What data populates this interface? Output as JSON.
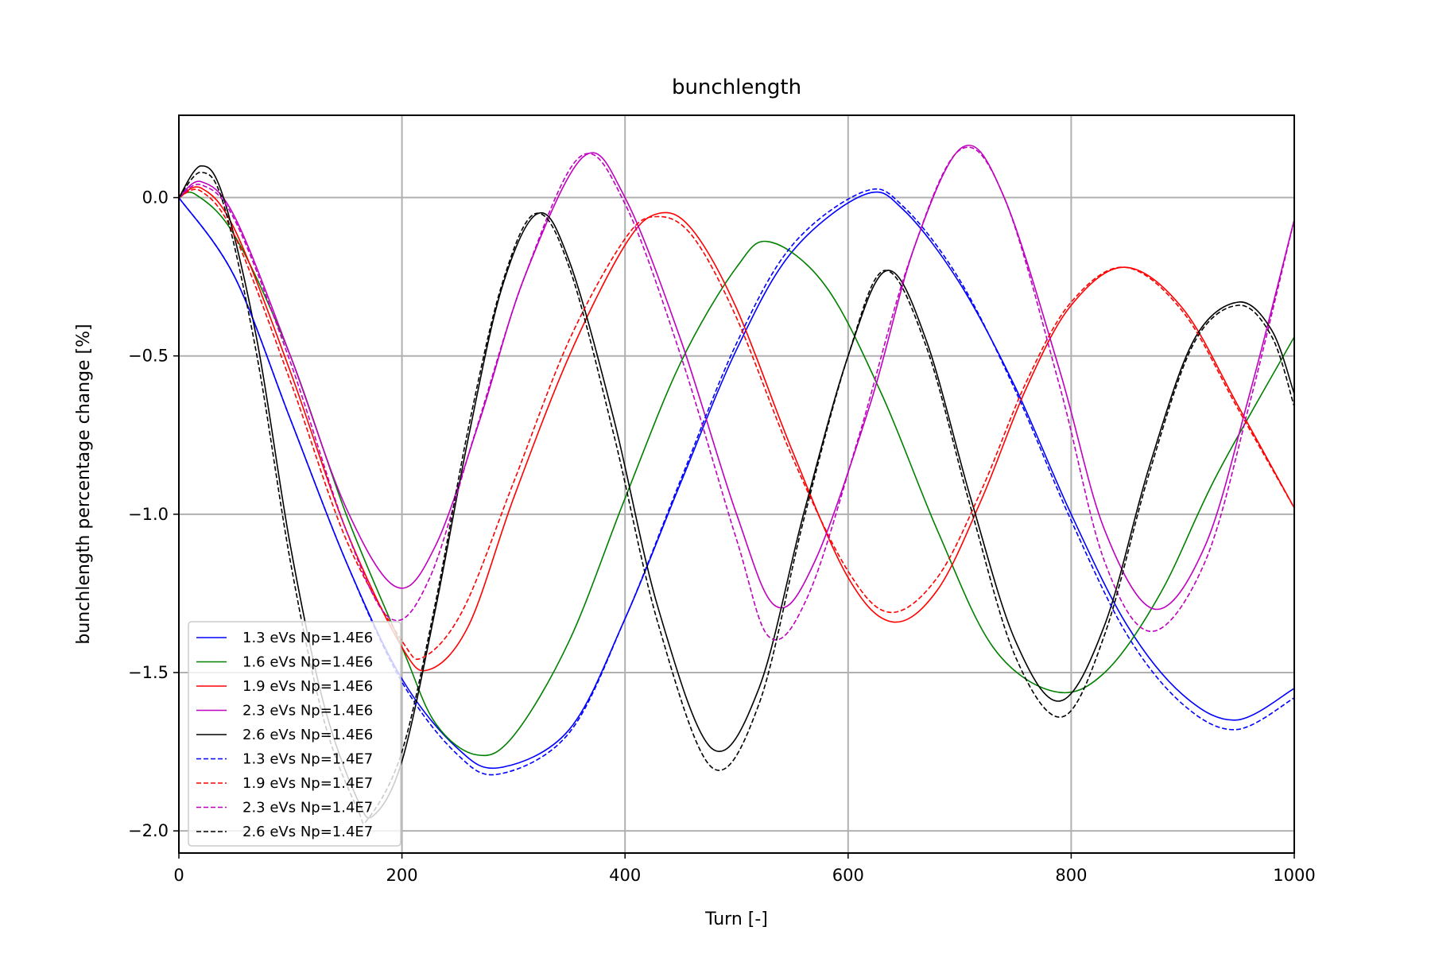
{
  "chart_data": {
    "type": "line",
    "title": "bunchlength",
    "xlabel": "Turn [-]",
    "ylabel": "bunchlength percentage change [%]",
    "xlim": [
      0,
      1000
    ],
    "ylim": [
      -2.07,
      0.26
    ],
    "xticks": [
      0,
      200,
      400,
      600,
      800,
      1000
    ],
    "xtick_labels": [
      "0",
      "200",
      "400",
      "600",
      "800",
      "1000"
    ],
    "yticks": [
      0.0,
      -0.5,
      -1.0,
      -1.5,
      -2.0
    ],
    "ytick_labels": [
      "0.0",
      "−0.5",
      "−1.0",
      "−1.5",
      "−2.0"
    ],
    "grid": true,
    "legend_position": "lower-left",
    "series": [
      {
        "name": "1.3 eVs Np=1.4E6",
        "color": "#0000ff",
        "dash": "solid",
        "points": [
          [
            0,
            0
          ],
          [
            50,
            -0.25
          ],
          [
            100,
            -0.7
          ],
          [
            150,
            -1.15
          ],
          [
            200,
            -1.52
          ],
          [
            250,
            -1.74
          ],
          [
            288,
            -1.8
          ],
          [
            350,
            -1.68
          ],
          [
            400,
            -1.33
          ],
          [
            450,
            -0.9
          ],
          [
            500,
            -0.48
          ],
          [
            550,
            -0.17
          ],
          [
            615,
            0.01
          ],
          [
            650,
            -0.04
          ],
          [
            700,
            -0.27
          ],
          [
            750,
            -0.6
          ],
          [
            800,
            -1.0
          ],
          [
            850,
            -1.35
          ],
          [
            900,
            -1.57
          ],
          [
            948,
            -1.65
          ],
          [
            1000,
            -1.55
          ]
        ]
      },
      {
        "name": "1.6 eVs Np=1.4E6",
        "color": "#008000",
        "dash": "solid",
        "points": [
          [
            0,
            0
          ],
          [
            15,
            0.01
          ],
          [
            50,
            -0.12
          ],
          [
            100,
            -0.5
          ],
          [
            150,
            -1.0
          ],
          [
            200,
            -1.42
          ],
          [
            230,
            -1.66
          ],
          [
            267,
            -1.76
          ],
          [
            300,
            -1.7
          ],
          [
            350,
            -1.4
          ],
          [
            400,
            -0.95
          ],
          [
            450,
            -0.52
          ],
          [
            500,
            -0.22
          ],
          [
            530,
            -0.14
          ],
          [
            580,
            -0.28
          ],
          [
            630,
            -0.62
          ],
          [
            680,
            -1.05
          ],
          [
            730,
            -1.42
          ],
          [
            785,
            -1.56
          ],
          [
            830,
            -1.5
          ],
          [
            880,
            -1.25
          ],
          [
            930,
            -0.88
          ],
          [
            1000,
            -0.44
          ]
        ]
      },
      {
        "name": "1.9 eVs Np=1.4E6",
        "color": "#ff0000",
        "dash": "solid",
        "points": [
          [
            0,
            0
          ],
          [
            20,
            0.03
          ],
          [
            50,
            -0.1
          ],
          [
            100,
            -0.55
          ],
          [
            150,
            -1.05
          ],
          [
            200,
            -1.42
          ],
          [
            225,
            -1.49
          ],
          [
            260,
            -1.35
          ],
          [
            300,
            -0.95
          ],
          [
            350,
            -0.5
          ],
          [
            400,
            -0.15
          ],
          [
            430,
            -0.05
          ],
          [
            460,
            -0.1
          ],
          [
            500,
            -0.35
          ],
          [
            550,
            -0.8
          ],
          [
            600,
            -1.2
          ],
          [
            640,
            -1.34
          ],
          [
            680,
            -1.24
          ],
          [
            720,
            -0.95
          ],
          [
            760,
            -0.6
          ],
          [
            800,
            -0.34
          ],
          [
            848,
            -0.22
          ],
          [
            900,
            -0.35
          ],
          [
            950,
            -0.66
          ],
          [
            1000,
            -0.98
          ]
        ]
      },
      {
        "name": "2.3 eVs Np=1.4E6",
        "color": "#bf00bf",
        "dash": "solid",
        "points": [
          [
            0,
            0
          ],
          [
            20,
            0.05
          ],
          [
            50,
            -0.06
          ],
          [
            100,
            -0.5
          ],
          [
            150,
            -0.98
          ],
          [
            195,
            -1.23
          ],
          [
            230,
            -1.1
          ],
          [
            270,
            -0.7
          ],
          [
            310,
            -0.25
          ],
          [
            363,
            0.13
          ],
          [
            400,
            0.0
          ],
          [
            450,
            -0.45
          ],
          [
            500,
            -1.0
          ],
          [
            535,
            -1.29
          ],
          [
            570,
            -1.15
          ],
          [
            620,
            -0.65
          ],
          [
            660,
            -0.15
          ],
          [
            703,
            0.16
          ],
          [
            740,
            0.0
          ],
          [
            790,
            -0.55
          ],
          [
            830,
            -1.05
          ],
          [
            875,
            -1.3
          ],
          [
            920,
            -1.1
          ],
          [
            960,
            -0.62
          ],
          [
            1000,
            -0.07
          ]
        ]
      },
      {
        "name": "2.6 eVs Np=1.4E6",
        "color": "#000000",
        "dash": "solid",
        "points": [
          [
            0,
            0
          ],
          [
            20,
            0.1
          ],
          [
            40,
            0.0
          ],
          [
            70,
            -0.45
          ],
          [
            100,
            -1.1
          ],
          [
            130,
            -1.6
          ],
          [
            160,
            -1.9
          ],
          [
            175,
            -1.95
          ],
          [
            200,
            -1.78
          ],
          [
            230,
            -1.3
          ],
          [
            260,
            -0.75
          ],
          [
            290,
            -0.28
          ],
          [
            322,
            -0.05
          ],
          [
            350,
            -0.2
          ],
          [
            390,
            -0.7
          ],
          [
            430,
            -1.3
          ],
          [
            478,
            -1.74
          ],
          [
            520,
            -1.55
          ],
          [
            560,
            -1.0
          ],
          [
            600,
            -0.5
          ],
          [
            635,
            -0.23
          ],
          [
            670,
            -0.45
          ],
          [
            710,
            -0.95
          ],
          [
            750,
            -1.4
          ],
          [
            790,
            -1.59
          ],
          [
            830,
            -1.35
          ],
          [
            870,
            -0.85
          ],
          [
            910,
            -0.45
          ],
          [
            950,
            -0.33
          ],
          [
            980,
            -0.42
          ],
          [
            1000,
            -0.62
          ]
        ]
      },
      {
        "name": "1.3 eVs Np=1.4E7",
        "color": "#0000ff",
        "dash": "dashed",
        "points": [
          [
            0,
            0
          ],
          [
            50,
            -0.25
          ],
          [
            100,
            -0.7
          ],
          [
            150,
            -1.15
          ],
          [
            200,
            -1.53
          ],
          [
            250,
            -1.76
          ],
          [
            288,
            -1.82
          ],
          [
            350,
            -1.69
          ],
          [
            400,
            -1.33
          ],
          [
            450,
            -0.89
          ],
          [
            500,
            -0.46
          ],
          [
            550,
            -0.15
          ],
          [
            615,
            0.02
          ],
          [
            650,
            -0.03
          ],
          [
            700,
            -0.26
          ],
          [
            750,
            -0.61
          ],
          [
            800,
            -1.02
          ],
          [
            850,
            -1.38
          ],
          [
            900,
            -1.6
          ],
          [
            948,
            -1.68
          ],
          [
            1000,
            -1.58
          ]
        ]
      },
      {
        "name": "1.9 eVs Np=1.4E7",
        "color": "#ff0000",
        "dash": "dashed",
        "points": [
          [
            0,
            0
          ],
          [
            20,
            0.02
          ],
          [
            50,
            -0.12
          ],
          [
            100,
            -0.58
          ],
          [
            150,
            -1.08
          ],
          [
            200,
            -1.4
          ],
          [
            220,
            -1.45
          ],
          [
            255,
            -1.3
          ],
          [
            300,
            -0.9
          ],
          [
            350,
            -0.45
          ],
          [
            400,
            -0.13
          ],
          [
            428,
            -0.06
          ],
          [
            460,
            -0.12
          ],
          [
            500,
            -0.38
          ],
          [
            550,
            -0.82
          ],
          [
            600,
            -1.18
          ],
          [
            638,
            -1.31
          ],
          [
            680,
            -1.2
          ],
          [
            720,
            -0.92
          ],
          [
            760,
            -0.58
          ],
          [
            800,
            -0.33
          ],
          [
            848,
            -0.22
          ],
          [
            900,
            -0.36
          ],
          [
            950,
            -0.67
          ],
          [
            1000,
            -0.98
          ]
        ]
      },
      {
        "name": "2.3 eVs Np=1.4E7",
        "color": "#bf00bf",
        "dash": "dashed",
        "points": [
          [
            0,
            0
          ],
          [
            20,
            0.04
          ],
          [
            50,
            -0.07
          ],
          [
            100,
            -0.52
          ],
          [
            150,
            -1.05
          ],
          [
            190,
            -1.33
          ],
          [
            225,
            -1.2
          ],
          [
            265,
            -0.75
          ],
          [
            310,
            -0.25
          ],
          [
            360,
            0.13
          ],
          [
            400,
            -0.02
          ],
          [
            450,
            -0.5
          ],
          [
            500,
            -1.08
          ],
          [
            530,
            -1.39
          ],
          [
            565,
            -1.25
          ],
          [
            610,
            -0.75
          ],
          [
            655,
            -0.2
          ],
          [
            700,
            0.15
          ],
          [
            740,
            0.0
          ],
          [
            790,
            -0.6
          ],
          [
            830,
            -1.15
          ],
          [
            872,
            -1.37
          ],
          [
            920,
            -1.15
          ],
          [
            960,
            -0.65
          ],
          [
            1000,
            -0.07
          ]
        ]
      },
      {
        "name": "2.6 eVs Np=1.4E7",
        "color": "#000000",
        "dash": "dashed",
        "points": [
          [
            0,
            0
          ],
          [
            20,
            0.08
          ],
          [
            40,
            -0.02
          ],
          [
            70,
            -0.5
          ],
          [
            100,
            -1.15
          ],
          [
            130,
            -1.65
          ],
          [
            160,
            -1.93
          ],
          [
            170,
            -1.96
          ],
          [
            200,
            -1.75
          ],
          [
            230,
            -1.28
          ],
          [
            260,
            -0.72
          ],
          [
            290,
            -0.27
          ],
          [
            320,
            -0.05
          ],
          [
            350,
            -0.22
          ],
          [
            390,
            -0.75
          ],
          [
            430,
            -1.35
          ],
          [
            478,
            -1.8
          ],
          [
            520,
            -1.6
          ],
          [
            560,
            -1.02
          ],
          [
            600,
            -0.5
          ],
          [
            633,
            -0.23
          ],
          [
            670,
            -0.47
          ],
          [
            710,
            -0.98
          ],
          [
            750,
            -1.45
          ],
          [
            792,
            -1.64
          ],
          [
            830,
            -1.38
          ],
          [
            870,
            -0.87
          ],
          [
            910,
            -0.46
          ],
          [
            950,
            -0.34
          ],
          [
            980,
            -0.44
          ],
          [
            1000,
            -0.66
          ]
        ]
      }
    ]
  }
}
